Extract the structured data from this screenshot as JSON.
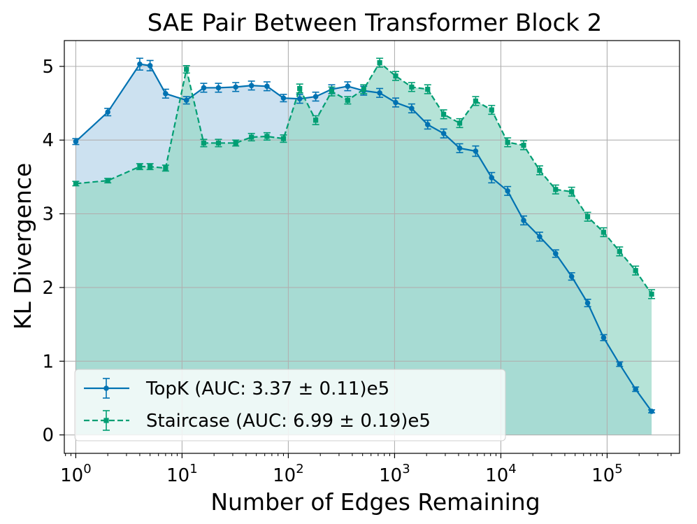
{
  "chart_data": {
    "type": "line",
    "title": "SAE Pair Between Transformer Block 2",
    "xlabel": "Number of Edges Remaining",
    "ylabel": "KL Divergence",
    "xscale": "log",
    "xlim": [
      0.78,
      480000
    ],
    "ylim": [
      -0.25,
      5.35
    ],
    "grid": true,
    "legend_position": "lower-left",
    "xticks": [
      {
        "value": 1,
        "base": "10",
        "exp": "0"
      },
      {
        "value": 10,
        "base": "10",
        "exp": "1"
      },
      {
        "value": 100,
        "base": "10",
        "exp": "2"
      },
      {
        "value": 1000,
        "base": "10",
        "exp": "3"
      },
      {
        "value": 10000,
        "base": "10",
        "exp": "4"
      },
      {
        "value": 100000,
        "base": "10",
        "exp": "5"
      }
    ],
    "yticks": [
      {
        "value": 0,
        "label": "0"
      },
      {
        "value": 1,
        "label": "1"
      },
      {
        "value": 2,
        "label": "2"
      },
      {
        "value": 3,
        "label": "3"
      },
      {
        "value": 4,
        "label": "4"
      },
      {
        "value": 5,
        "label": "5"
      }
    ],
    "series": [
      {
        "name": "TopK (AUC: 3.37 ± 0.11)e5",
        "color": "#0072b2",
        "marker": "circle",
        "linestyle": "solid",
        "x": [
          1,
          2,
          4,
          5,
          7,
          11,
          16,
          22,
          32,
          45,
          63,
          90,
          128,
          181,
          256,
          362,
          512,
          724,
          1024,
          1448,
          2048,
          2896,
          4096,
          5792,
          8192,
          11585,
          16384,
          23170,
          32768,
          46341,
          65536,
          92682,
          131072,
          185364,
          262144
        ],
        "y": [
          3.98,
          4.38,
          5.03,
          5.01,
          4.63,
          4.54,
          4.71,
          4.71,
          4.72,
          4.74,
          4.73,
          4.57,
          4.56,
          4.59,
          4.69,
          4.73,
          4.67,
          4.64,
          4.51,
          4.43,
          4.21,
          4.09,
          3.89,
          3.85,
          3.49,
          3.31,
          2.91,
          2.69,
          2.46,
          2.15,
          1.79,
          1.32,
          0.96,
          0.62,
          0.32
        ],
        "error": [
          0.04,
          0.05,
          0.08,
          0.07,
          0.06,
          0.05,
          0.06,
          0.06,
          0.06,
          0.06,
          0.06,
          0.05,
          0.06,
          0.06,
          0.06,
          0.06,
          0.06,
          0.06,
          0.06,
          0.06,
          0.06,
          0.06,
          0.06,
          0.07,
          0.07,
          0.06,
          0.06,
          0.06,
          0.05,
          0.05,
          0.05,
          0.04,
          0.03,
          0.03,
          0.02
        ],
        "fill_color": "#b9d6ea"
      },
      {
        "name": "Staircase (AUC: 6.99 ± 0.19)e5",
        "color": "#009e73",
        "marker": "square",
        "linestyle": "dashed",
        "x": [
          1,
          2,
          4,
          5,
          7,
          11,
          16,
          22,
          32,
          45,
          63,
          90,
          128,
          181,
          256,
          362,
          512,
          724,
          1024,
          1448,
          2048,
          2896,
          4096,
          5792,
          8192,
          11585,
          16384,
          23170,
          32768,
          46341,
          65536,
          92682,
          131072,
          185364,
          262144
        ],
        "y": [
          3.41,
          3.45,
          3.64,
          3.64,
          3.62,
          4.96,
          3.96,
          3.96,
          3.96,
          4.04,
          4.05,
          4.02,
          4.7,
          4.27,
          4.66,
          4.54,
          4.69,
          5.05,
          4.87,
          4.72,
          4.69,
          4.35,
          4.23,
          4.53,
          4.41,
          3.97,
          3.93,
          3.59,
          3.33,
          3.3,
          2.96,
          2.75,
          2.49,
          2.23,
          1.91
        ],
        "error": [
          0.03,
          0.03,
          0.04,
          0.04,
          0.04,
          0.05,
          0.05,
          0.05,
          0.04,
          0.05,
          0.05,
          0.05,
          0.06,
          0.06,
          0.06,
          0.05,
          0.06,
          0.06,
          0.06,
          0.06,
          0.06,
          0.06,
          0.06,
          0.06,
          0.06,
          0.06,
          0.06,
          0.06,
          0.06,
          0.06,
          0.06,
          0.06,
          0.06,
          0.06,
          0.06
        ],
        "fill_color": "#99d8c7"
      }
    ]
  }
}
